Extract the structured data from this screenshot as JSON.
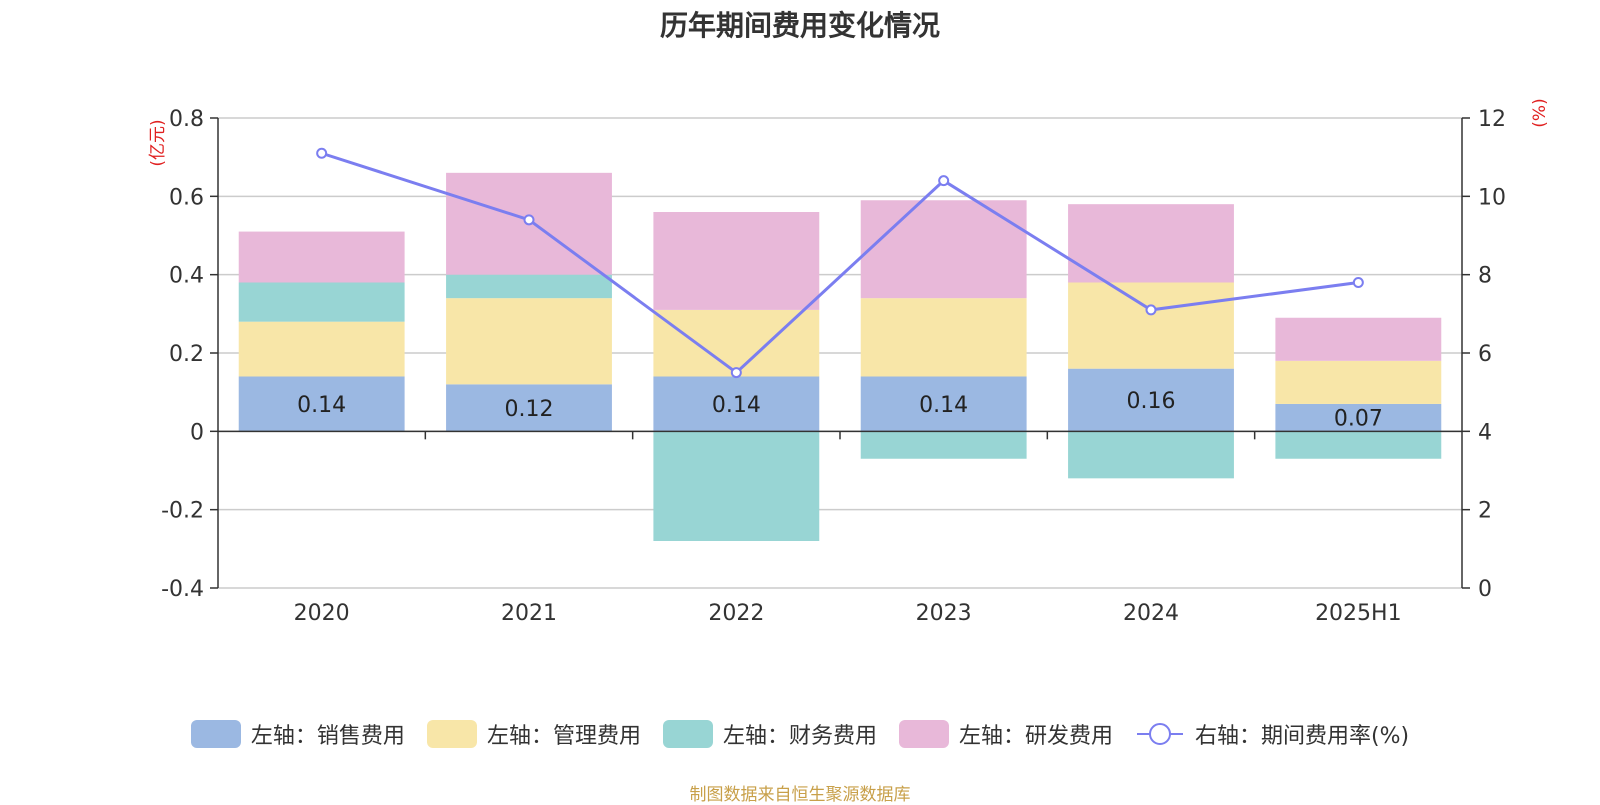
{
  "title": "历年期间费用变化情况",
  "source": "制图数据来自恒生聚源数据库",
  "chart_data": {
    "type": "bar",
    "stacked": true,
    "categories": [
      "2020",
      "2021",
      "2022",
      "2023",
      "2024",
      "2025H1"
    ],
    "left_axis": {
      "unit": "(亿元)",
      "ylim": [
        -0.4,
        0.8
      ],
      "ticks": [
        "-0.4",
        "-0.2",
        "0",
        "0.2",
        "0.4",
        "0.6",
        "0.8"
      ],
      "tick_values": [
        -0.4,
        -0.2,
        0,
        0.2,
        0.4,
        0.6,
        0.8
      ]
    },
    "right_axis": {
      "unit": "(%)",
      "ylim": [
        0,
        12
      ],
      "ticks": [
        "0",
        "2",
        "4",
        "6",
        "8",
        "10",
        "12"
      ],
      "tick_values": [
        0,
        2,
        4,
        6,
        8,
        10,
        12
      ]
    },
    "series": [
      {
        "name": "左轴：销售费用",
        "axis": "left",
        "color": "#9bb8e2",
        "values": [
          0.14,
          0.12,
          0.14,
          0.14,
          0.16,
          0.07
        ],
        "labels": [
          "0.14",
          "0.12",
          "0.14",
          "0.14",
          "0.16",
          "0.07"
        ]
      },
      {
        "name": "左轴：管理费用",
        "axis": "left",
        "color": "#f8e6a8",
        "values": [
          0.14,
          0.22,
          0.17,
          0.2,
          0.22,
          0.11
        ]
      },
      {
        "name": "左轴：财务费用",
        "axis": "left",
        "color": "#98d5d4",
        "values": [
          0.1,
          0.06,
          -0.28,
          -0.07,
          -0.12,
          -0.07
        ]
      },
      {
        "name": "左轴：研发费用",
        "axis": "left",
        "color": "#e8b8d9",
        "values": [
          0.13,
          0.26,
          0.25,
          0.25,
          0.2,
          0.11
        ]
      },
      {
        "name": "右轴：期间费用率(%)",
        "axis": "right",
        "type": "line",
        "color": "#7b7ef0",
        "values": [
          11.1,
          9.4,
          5.5,
          10.4,
          7.1,
          7.8
        ]
      }
    ],
    "grid": true,
    "legend_position": "bottom"
  }
}
